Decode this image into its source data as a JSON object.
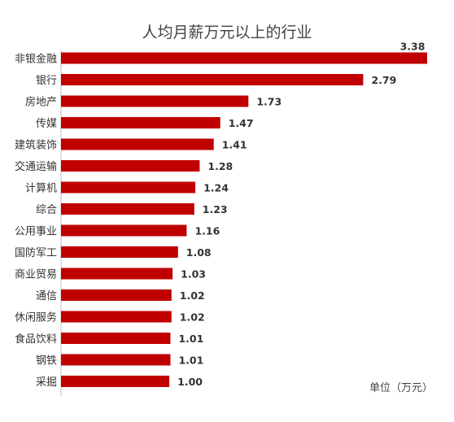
{
  "chart_data": {
    "type": "bar",
    "orientation": "horizontal",
    "title": "人均月薪万元以上的行业",
    "unit_label": "单位（万元）",
    "categories": [
      "非银金融",
      "银行",
      "房地产",
      "传媒",
      "建筑装饰",
      "交通运输",
      "计算机",
      "综合",
      "公用事业",
      "国防军工",
      "商业贸易",
      "通信",
      "休闲服务",
      "食品饮料",
      "钢铁",
      "采掘"
    ],
    "values": [
      3.38,
      2.79,
      1.73,
      1.47,
      1.41,
      1.28,
      1.24,
      1.23,
      1.16,
      1.08,
      1.03,
      1.02,
      1.02,
      1.01,
      1.01,
      1.0
    ],
    "value_labels": [
      "3.38",
      "2.79",
      "1.73",
      "1.47",
      "1.41",
      "1.28",
      "1.24",
      "1.23",
      "1.16",
      "1.08",
      "1.03",
      "1.02",
      "1.02",
      "1.01",
      "1.01",
      "1.00"
    ],
    "bar_color": "#C00000",
    "grid": false,
    "legend": false
  }
}
